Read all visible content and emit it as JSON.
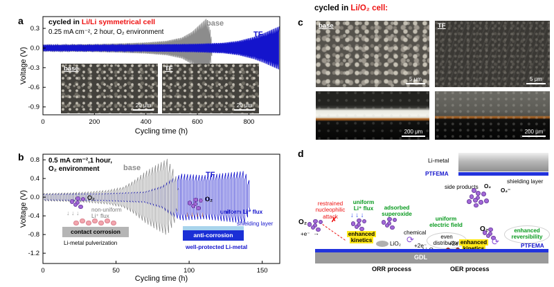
{
  "figure": {
    "background": "#ffffff"
  },
  "colors": {
    "red": "#ee1111",
    "blue": "#1414cc",
    "gray": "#8c8c8c",
    "green": "#089a1e",
    "orange": "#f07800",
    "purple": "#a368d8"
  },
  "panel_a": {
    "label": "a",
    "title_black": "cycled in ",
    "title_red": "Li/Li symmetrical cell",
    "condition": "0.25 mA cm⁻², 2 hour, O₂ environment",
    "legend_base": "base",
    "legend_tf": "TF",
    "ylabel": "Voltage (V)",
    "xlabel": "Cycling time (h)",
    "inset_base_label": "base",
    "inset_base_scale": "20 μm",
    "inset_tf_label": "TF",
    "inset_tf_scale": "20 μm"
  },
  "panel_b": {
    "label": "b",
    "condition_line1": "0.5 mA cm⁻²,1 hour,",
    "condition_line2": "O₂ environment",
    "legend_base": "base",
    "legend_tf": "TF",
    "ylabel": "Voltage (V)",
    "xlabel": "Cycling time (h)",
    "o2_left": "O₂",
    "gray_arrows": "↓ ↓ ↓",
    "nonuniform_line1": "non-uniform",
    "nonuniform_line2": "Li⁺ flux",
    "contact_corrosion": "contact corrosion",
    "pulverization": "Li-metal pulverization",
    "o2_right": "O₂",
    "orange_arrows": "↓ ↓ ↓ ↓",
    "uniform_flux": "uniform Li⁺ flux",
    "shielding_layer": "shielding layer",
    "anti_corrosion": "anti-corrosion",
    "protected": "well-protected Li-metal"
  },
  "panel_c": {
    "label": "c",
    "title_black": "cycled in ",
    "title_red": "Li/O₂ cell:",
    "img_base_label": "base",
    "img_tf_label": "TF",
    "scale_top": "5 μm",
    "scale_bottom": "200 μm"
  },
  "panel_d": {
    "label": "d",
    "li_metal": "Li-metal",
    "ptfema_top": "PTFEMA",
    "ptfema_bottom": "PTFEMA",
    "shielding_layer": "shielding layer",
    "side_products": "side products",
    "o2_top": "O₂",
    "superoxide_top": "O₂⁻",
    "o2_left": "O₂",
    "plus_e": "+e⁻",
    "right_arrow": "→",
    "restrained_line1": "restrained",
    "restrained_line2": "nucleophilic",
    "restrained_line3": "attack",
    "x_mark": "✗",
    "uniform_flux_line1": "uniform",
    "uniform_flux_line2": "Li⁺ flux",
    "blue_arrows": "↓ ↓ ↓",
    "adsorbed_line1": "adsorbed",
    "adsorbed_line2": "superoxide",
    "kinetics1_line1": "enhanced",
    "kinetics1_line2": "kinetics",
    "lio2": "LiO₂",
    "chemical": "chemical",
    "cycle_arrow": "⟳",
    "plus_2e_1": "+2e⁻",
    "even_line1": "even",
    "even_line2": "distribution",
    "field_line1": "uniform",
    "field_line2": "electric field",
    "li2o2": "Li₂O₂",
    "plus_2e_2": "+2e⁻",
    "kinetics2_line1": "enhanced",
    "kinetics2_line2": "kinetics",
    "o2_right": "O₂",
    "cycle_arrow2": "⟳",
    "reversibility_line1": "enhanced",
    "reversibility_line2": "reversibility",
    "gdl": "GDL",
    "orr": "ORR process",
    "oer": "OER process"
  },
  "dot_clusters": [
    {
      "host": "dots-b-o2-left",
      "n": 6,
      "color": "#a368d8",
      "stroke": "#6b3fa0",
      "r": 3.2,
      "layout": "blob",
      "spread": 4.2
    },
    {
      "host": "dots-b-o2-right",
      "n": 6,
      "color": "#a368d8",
      "stroke": "#6b3fa0",
      "r": 3.2,
      "layout": "blob",
      "spread": 4.2
    },
    {
      "host": "dots-b-li",
      "n": 7,
      "color": "#f2a6ae",
      "stroke": "#d97f8c",
      "r": 3.6,
      "layout": "row",
      "spread": 9
    },
    {
      "host": "dots-d-side",
      "n": 10,
      "color": "#a368d8",
      "stroke": "#6b3fa0",
      "r": 3.4,
      "layout": "blob",
      "spread": 4.6
    },
    {
      "host": "dots-d-o2-left",
      "n": 6,
      "color": "#a368d8",
      "stroke": "#6b3fa0",
      "r": 3.2,
      "layout": "blob",
      "spread": 4.2
    },
    {
      "host": "dots-d-flux",
      "n": 6,
      "color": "#a368d8",
      "stroke": "#6b3fa0",
      "r": 3.2,
      "layout": "blob",
      "spread": 4.2
    },
    {
      "host": "dots-d-adsorbed",
      "n": 6,
      "color": "#a368d8",
      "stroke": "#6b3fa0",
      "r": 3.2,
      "layout": "blob",
      "spread": 4.2
    },
    {
      "host": "dots-d-o2-right",
      "n": 5,
      "color": "#a368d8",
      "stroke": "#6b3fa0",
      "r": 3.2,
      "layout": "blob",
      "spread": 4.2
    },
    {
      "host": "dots-d-li2o2",
      "n": 4,
      "color": "#b03a2e",
      "stroke": "#7a241c",
      "r": 3.0,
      "layout": "row",
      "spread": 7
    }
  ],
  "chart_data": [
    {
      "id": "a",
      "type": "line",
      "title": "cycled in Li/Li symmetrical cell",
      "xlabel": "Cycling time (h)",
      "ylabel": "Voltage (V)",
      "xlim": [
        0,
        920
      ],
      "ylim": [
        -1.02,
        0.48
      ],
      "xticks": [
        0,
        200,
        400,
        600,
        800
      ],
      "yticks": [
        0.3,
        0.0,
        -0.3,
        -0.6,
        -0.9
      ],
      "series": [
        {
          "name": "base",
          "color": "#8c8c8c",
          "half_period_h": 2,
          "amplitude_envelope": [
            [
              0,
              0.05
            ],
            [
              100,
              0.055
            ],
            [
              200,
              0.06
            ],
            [
              300,
              0.07
            ],
            [
              400,
              0.085
            ],
            [
              480,
              0.11
            ],
            [
              540,
              0.16
            ],
            [
              580,
              0.25
            ],
            [
              610,
              0.36
            ],
            [
              635,
              0.45
            ],
            [
              650,
              0.28
            ],
            [
              658,
              0.07
            ]
          ]
        },
        {
          "name": "TF",
          "color": "#1414cc",
          "half_period_h": 2,
          "amplitude_envelope": [
            [
              0,
              0.045
            ],
            [
              200,
              0.05
            ],
            [
              400,
              0.055
            ],
            [
              600,
              0.065
            ],
            [
              700,
              0.08
            ],
            [
              760,
              0.11
            ],
            [
              820,
              0.17
            ],
            [
              860,
              0.23
            ],
            [
              900,
              0.3
            ],
            [
              918,
              0.33
            ]
          ]
        }
      ]
    },
    {
      "id": "b",
      "type": "line",
      "title": "0.5 mA cm⁻², 1 hour, O₂ environment",
      "xlabel": "Cycling time (h)",
      "ylabel": "Voltage (V)",
      "xlim": [
        0,
        162
      ],
      "ylim": [
        -1.42,
        0.92
      ],
      "xticks": [
        0,
        50,
        100,
        150
      ],
      "yticks": [
        0.8,
        0.4,
        0.0,
        -0.4,
        -0.8,
        -1.2
      ],
      "series": [
        {
          "name": "TF",
          "color": "#1414cc",
          "half_period_h": 1,
          "amplitude_envelope": [
            [
              0,
              0.07
            ],
            [
              40,
              0.08
            ],
            [
              70,
              0.12
            ],
            [
              82,
              0.25
            ],
            [
              88,
              0.4
            ],
            [
              95,
              0.5
            ],
            [
              110,
              0.47
            ],
            [
              125,
              0.52
            ],
            [
              138,
              0.56
            ],
            [
              142,
              0.3
            ]
          ]
        },
        {
          "name": "base",
          "color": "#8c8c8c",
          "half_period_h": 1,
          "amplitude_envelope": [
            [
              0,
              0.08
            ],
            [
              15,
              0.09
            ],
            [
              30,
              0.11
            ],
            [
              45,
              0.15
            ],
            [
              55,
              0.22
            ],
            [
              62,
              0.35
            ],
            [
              70,
              0.55
            ],
            [
              78,
              0.7
            ],
            [
              85,
              0.82
            ],
            [
              90,
              0.55
            ],
            [
              93,
              0.2
            ]
          ]
        }
      ]
    }
  ]
}
